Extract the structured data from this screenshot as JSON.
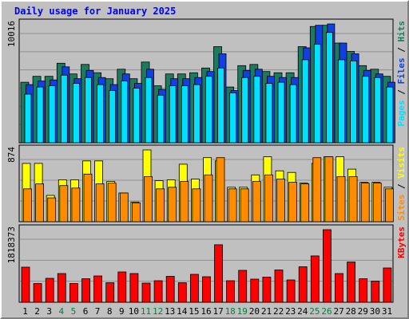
{
  "chart_data": {
    "type": "bar",
    "title": "Daily usage for January 2025",
    "categories": [
      "1",
      "2",
      "3",
      "4",
      "5",
      "6",
      "7",
      "8",
      "9",
      "10",
      "11",
      "12",
      "13",
      "14",
      "15",
      "16",
      "17",
      "18",
      "19",
      "20",
      "21",
      "22",
      "23",
      "24",
      "25",
      "26",
      "27",
      "28",
      "29",
      "30",
      "31"
    ],
    "weekend_days": [
      "4",
      "5",
      "11",
      "12",
      "18",
      "19",
      "25",
      "26"
    ],
    "panels": [
      {
        "id": "hits-files-pages",
        "max_label": "10016",
        "ylim": [
          0,
          10016
        ],
        "legend": [
          {
            "label": "Pages",
            "color": "#00e0ff"
          },
          {
            "label": "Files",
            "color": "#1040e0"
          },
          {
            "label": "Hits",
            "color": "#1e7a5e"
          }
        ],
        "series": [
          {
            "name": "Hits",
            "color": "#1e7a5e",
            "values": [
              5100,
              5600,
              5600,
              6700,
              5800,
              6600,
              5900,
              5400,
              6200,
              5400,
              6800,
              4800,
              5800,
              5800,
              5900,
              6300,
              8100,
              4700,
              6500,
              6600,
              6000,
              5900,
              5900,
              8100,
              9800,
              9900,
              8400,
              7700,
              6500,
              6200,
              5600
            ]
          },
          {
            "name": "Files",
            "color": "#1040e0",
            "values": [
              4900,
              5200,
              5300,
              6400,
              5400,
              6100,
              5500,
              4900,
              5800,
              5000,
              6200,
              4500,
              5400,
              5400,
              5500,
              6000,
              7500,
              4400,
              6100,
              6200,
              5600,
              5500,
              5500,
              8000,
              9900,
              10016,
              8400,
              7500,
              6100,
              5800,
              5100
            ]
          },
          {
            "name": "Pages",
            "color": "#00e0ff",
            "values": [
              4100,
              4700,
              4800,
              5700,
              5000,
              5500,
              4900,
              4400,
              5200,
              4600,
              5500,
              4000,
              4800,
              4800,
              4900,
              5600,
              6300,
              4200,
              5500,
              5600,
              5000,
              5100,
              4900,
              7000,
              8300,
              9300,
              7000,
              6900,
              5600,
              5500,
              4700
            ]
          }
        ]
      },
      {
        "id": "visits-sites",
        "max_label": "874",
        "ylim": [
          0,
          874
        ],
        "legend": [
          {
            "label": "Sites",
            "color": "#ff8c00"
          },
          {
            "label": "Visits",
            "color": "#ffff00"
          }
        ],
        "series": [
          {
            "name": "Visits",
            "color": "#ffff00",
            "values": [
              710,
              710,
              320,
              510,
              510,
              740,
              740,
              490,
              350,
              240,
              874,
              500,
              510,
              700,
              520,
              780,
              740,
              420,
              420,
              570,
              790,
              620,
              600,
              470,
              710,
              790,
              790,
              640,
              480,
              480,
              420
            ]
          },
          {
            "name": "Sites",
            "color": "#ff8c00",
            "values": [
              400,
              460,
              290,
              440,
              410,
              580,
              460,
              470,
              350,
              230,
              550,
              400,
              420,
              490,
              400,
              570,
              780,
              400,
              400,
              490,
              570,
              520,
              480,
              460,
              780,
              790,
              550,
              550,
              470,
              470,
              400
            ]
          }
        ]
      },
      {
        "id": "kbytes",
        "max_label": "1818373",
        "ylim": [
          0,
          1818373
        ],
        "legend": [
          {
            "label": "KBytes",
            "color": "#ff0000"
          }
        ],
        "series": [
          {
            "name": "KBytes",
            "color": "#ff0000",
            "values": [
              880000,
              470000,
              600000,
              720000,
              470000,
              590000,
              660000,
              490000,
              760000,
              720000,
              480000,
              540000,
              650000,
              490000,
              700000,
              640000,
              1440000,
              540000,
              800000,
              580000,
              630000,
              810000,
              560000,
              890000,
              1160000,
              1818373,
              720000,
              1010000,
              590000,
              530000,
              860000
            ]
          }
        ]
      }
    ]
  }
}
